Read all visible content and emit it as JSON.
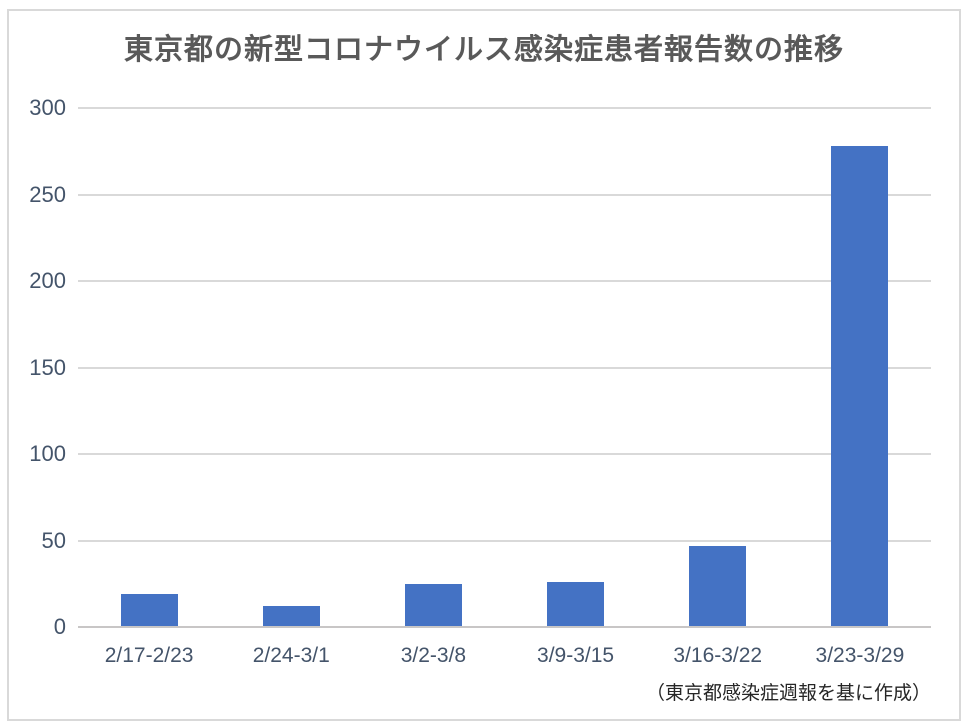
{
  "title": "東京都の新型コロナウイルス感染症患者報告数の推移",
  "source_note": "（東京都感染症週報を基に作成）",
  "chart_data": {
    "type": "bar",
    "title": "東京都の新型コロナウイルス感染症患者報告数の推移",
    "categories": [
      "2/17-2/23",
      "2/24-3/1",
      "3/2-3/8",
      "3/9-3/15",
      "3/16-3/22",
      "3/23-3/29"
    ],
    "values": [
      19,
      12,
      25,
      26,
      47,
      278
    ],
    "xlabel": "",
    "ylabel": "",
    "ylim": [
      0,
      300
    ],
    "yticks": [
      0,
      50,
      100,
      150,
      200,
      250,
      300
    ],
    "grid": true,
    "legend": false,
    "annotation": "（東京都感染症週報を基に作成）",
    "colors": {
      "bar": "#4472c4",
      "gridline": "#d9d9d9",
      "axis_line": "#c8c6c6",
      "tick_label": "#44546a",
      "title": "#595959",
      "source_note": "#262626",
      "frame_border": "#d9d9d9",
      "background": "#ffffff"
    }
  }
}
